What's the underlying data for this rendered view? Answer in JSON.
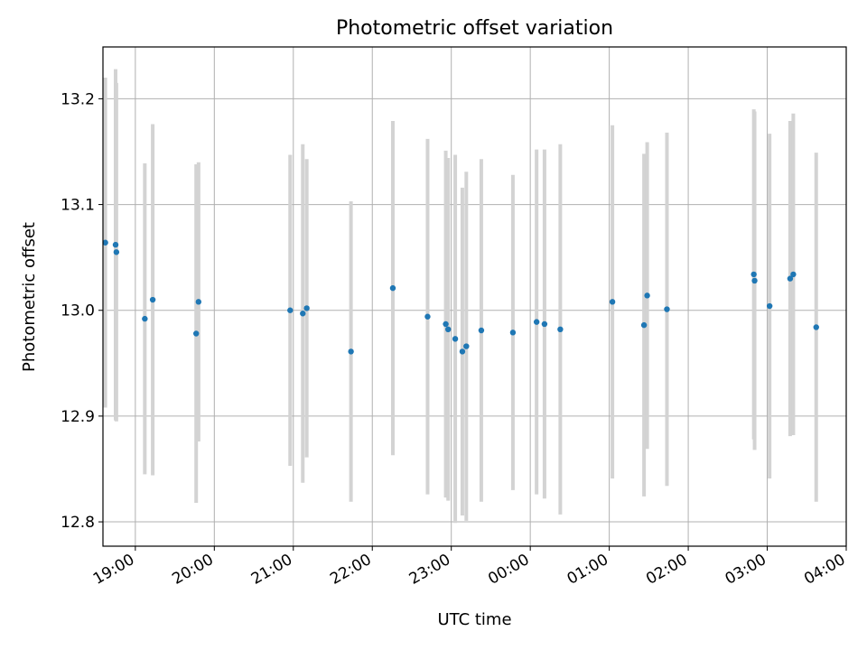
{
  "chart_data": {
    "type": "scatter",
    "title": "Photometric offset variation",
    "xlabel": "UTC time",
    "ylabel": "Photometric offset",
    "x_unit": "hours",
    "xlim": [
      18.59,
      28.0
    ],
    "ylim": [
      12.777,
      13.249
    ],
    "grid": true,
    "legend": "none",
    "x_tick_values": [
      19,
      20,
      21,
      22,
      23,
      24,
      25,
      26,
      27,
      28
    ],
    "x_tick_labels": [
      "19:00",
      "20:00",
      "21:00",
      "22:00",
      "23:00",
      "00:00",
      "01:00",
      "02:00",
      "03:00",
      "04:00"
    ],
    "y_tick_values": [
      12.8,
      12.9,
      13.0,
      13.1,
      13.2
    ],
    "y_tick_labels": [
      "12.8",
      "12.9",
      "13.0",
      "13.1",
      "13.2"
    ],
    "marker_color": "#1f77b4",
    "errorbar_color": "#d3d3d3",
    "points": [
      {
        "x": 18.62,
        "y": 13.064,
        "err": 0.156
      },
      {
        "x": 18.75,
        "y": 13.062,
        "err": 0.166
      },
      {
        "x": 18.76,
        "y": 13.055,
        "err": 0.16
      },
      {
        "x": 19.12,
        "y": 12.992,
        "err": 0.147
      },
      {
        "x": 19.22,
        "y": 13.01,
        "err": 0.166
      },
      {
        "x": 19.77,
        "y": 12.978,
        "err": 0.16
      },
      {
        "x": 19.8,
        "y": 13.008,
        "err": 0.132
      },
      {
        "x": 20.96,
        "y": 13.0,
        "err": 0.147
      },
      {
        "x": 21.12,
        "y": 12.997,
        "err": 0.16
      },
      {
        "x": 21.17,
        "y": 13.002,
        "err": 0.141
      },
      {
        "x": 21.73,
        "y": 12.961,
        "err": 0.142
      },
      {
        "x": 22.26,
        "y": 13.021,
        "err": 0.158
      },
      {
        "x": 22.7,
        "y": 12.994,
        "err": 0.168
      },
      {
        "x": 22.93,
        "y": 12.987,
        "err": 0.164
      },
      {
        "x": 22.96,
        "y": 12.982,
        "err": 0.162
      },
      {
        "x": 23.05,
        "y": 12.973,
        "err": 0.174
      },
      {
        "x": 23.14,
        "y": 12.961,
        "err": 0.155
      },
      {
        "x": 23.19,
        "y": 12.966,
        "err": 0.165
      },
      {
        "x": 23.38,
        "y": 12.981,
        "err": 0.162
      },
      {
        "x": 23.78,
        "y": 12.979,
        "err": 0.149
      },
      {
        "x": 24.08,
        "y": 12.989,
        "err": 0.163
      },
      {
        "x": 24.18,
        "y": 12.987,
        "err": 0.165
      },
      {
        "x": 24.38,
        "y": 12.982,
        "err": 0.175
      },
      {
        "x": 25.04,
        "y": 13.008,
        "err": 0.167
      },
      {
        "x": 25.44,
        "y": 12.986,
        "err": 0.162
      },
      {
        "x": 25.48,
        "y": 13.014,
        "err": 0.145
      },
      {
        "x": 25.73,
        "y": 13.001,
        "err": 0.167
      },
      {
        "x": 26.83,
        "y": 13.034,
        "err": 0.156
      },
      {
        "x": 26.84,
        "y": 13.028,
        "err": 0.16
      },
      {
        "x": 27.03,
        "y": 13.004,
        "err": 0.163
      },
      {
        "x": 27.29,
        "y": 13.03,
        "err": 0.149
      },
      {
        "x": 27.33,
        "y": 13.034,
        "err": 0.152
      },
      {
        "x": 27.62,
        "y": 12.984,
        "err": 0.165
      }
    ]
  }
}
